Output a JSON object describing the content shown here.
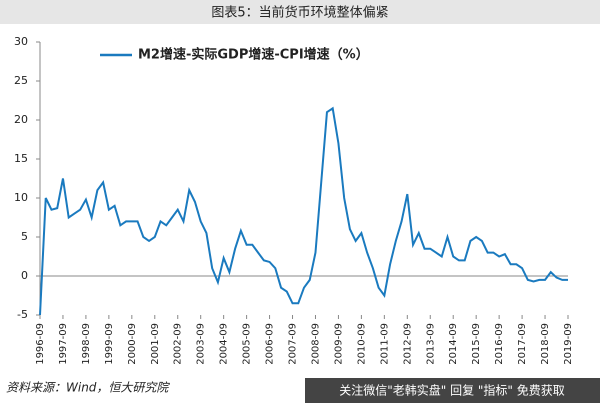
{
  "chart_data": {
    "type": "line",
    "title": "图表5：当前货币环境整体偏紧",
    "categories": [
      "1996-09",
      null,
      null,
      null,
      "1997-09",
      null,
      null,
      null,
      "1998-09",
      null,
      null,
      null,
      "1999-09",
      null,
      null,
      null,
      "2000-09",
      null,
      null,
      null,
      "2001-09",
      null,
      null,
      null,
      "2002-09",
      null,
      null,
      null,
      "2003-09",
      null,
      null,
      null,
      "2004-09",
      null,
      null,
      null,
      "2005-09",
      null,
      null,
      null,
      "2006-09",
      null,
      null,
      null,
      "2007-09",
      null,
      null,
      null,
      "2008-09",
      null,
      null,
      null,
      "2009-09",
      null,
      null,
      null,
      "2010-09",
      null,
      null,
      null,
      "2011-09",
      null,
      null,
      null,
      "2012-09",
      null,
      null,
      null,
      "2013-09",
      null,
      null,
      null,
      "2014-09",
      null,
      null,
      null,
      "2015-09",
      null,
      null,
      null,
      "2016-09",
      null,
      null,
      null,
      "2017-09",
      null,
      null,
      null,
      "2018-09",
      null,
      null,
      null,
      "2019-09"
    ],
    "series": [
      {
        "name": "M2增速-实际GDP增速-CPI增速（%）",
        "color": "#1a7abf",
        "values": [
          -5,
          10,
          8.5,
          8.7,
          12.5,
          7.5,
          8,
          8.5,
          9.8,
          7.5,
          11,
          12,
          8.5,
          9,
          6.5,
          7,
          7,
          7,
          5,
          4.5,
          5,
          7,
          6.5,
          7.5,
          8.5,
          7,
          11,
          9.5,
          7,
          5.5,
          1,
          -0.8,
          2.3,
          0.5,
          3.5,
          5.8,
          4,
          4,
          3,
          2,
          1.8,
          1,
          -1.5,
          -2,
          -3.5,
          -3.5,
          -1.5,
          -0.5,
          3,
          12,
          21,
          21.5,
          17,
          10,
          6,
          4.5,
          5.5,
          3,
          1,
          -1.5,
          -2.5,
          1.5,
          4.5,
          7,
          10.5,
          4,
          5.5,
          3.5,
          3.5,
          3,
          2.5,
          5,
          2.5,
          2,
          2,
          4.5,
          5,
          4.5,
          3,
          3,
          2.5,
          2.8,
          1.5,
          1.5,
          1,
          -0.5,
          -0.7,
          -0.5,
          -0.5,
          0.5,
          -0.2,
          -0.5,
          -0.5
        ]
      }
    ],
    "ylim": [
      -5,
      30
    ],
    "yticks": [
      -5,
      0,
      5,
      10,
      15,
      20,
      25,
      30
    ],
    "source": "资料来源：Wind，恒大研究院",
    "watermark": "关注微信\"老韩实盘\" 回复 \"指标\" 免费获取"
  }
}
